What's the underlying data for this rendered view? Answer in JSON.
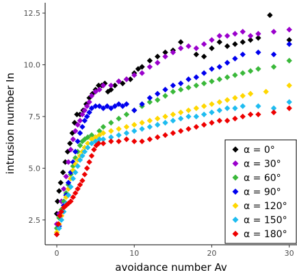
{
  "chart_data": {
    "type": "scatter",
    "title": "",
    "xlabel": "avoidance number Av",
    "ylabel": "intrusion number In",
    "xlim": [
      -1.5,
      31
    ],
    "ylim": [
      1.3,
      13.0
    ],
    "xticks": [
      0,
      10,
      20,
      30
    ],
    "yticks": [
      2.5,
      5.0,
      7.5,
      10.0,
      12.5
    ],
    "xtick_labels": [
      "0",
      "10",
      "20",
      "30"
    ],
    "ytick_labels": [
      "2.5",
      "5.0",
      "7.5",
      "10.0",
      "12.5"
    ],
    "grid": false,
    "legend_position": "bottom-right",
    "marker": "diamond",
    "series": [
      {
        "name": "α = 0°",
        "color": "#000000",
        "points": [
          [
            0.0,
            2.8
          ],
          [
            0.1,
            3.4
          ],
          [
            0.3,
            3.9
          ],
          [
            0.5,
            4.3
          ],
          [
            0.8,
            4.8
          ],
          [
            1.1,
            5.3
          ],
          [
            1.4,
            5.8
          ],
          [
            1.7,
            6.2
          ],
          [
            2.0,
            6.7
          ],
          [
            2.3,
            7.2
          ],
          [
            2.6,
            7.6
          ],
          [
            3.0,
            7.6
          ],
          [
            3.4,
            7.8
          ],
          [
            3.8,
            8.1
          ],
          [
            4.2,
            8.4
          ],
          [
            4.6,
            8.6
          ],
          [
            5.0,
            8.8
          ],
          [
            5.4,
            9.0
          ],
          [
            5.8,
            9.0
          ],
          [
            6.2,
            9.1
          ],
          [
            6.6,
            8.7
          ],
          [
            7.0,
            8.8
          ],
          [
            7.5,
            9.0
          ],
          [
            8.0,
            9.2
          ],
          [
            8.5,
            9.1
          ],
          [
            9.0,
            9.3
          ],
          [
            9.5,
            9.3
          ],
          [
            10.0,
            9.6
          ],
          [
            10.5,
            9.8
          ],
          [
            11.0,
            9.9
          ],
          [
            12.0,
            10.2
          ],
          [
            13.0,
            10.4
          ],
          [
            14.0,
            10.6
          ],
          [
            15.0,
            10.7
          ],
          [
            16.0,
            11.1
          ],
          [
            18.0,
            10.5
          ],
          [
            19.0,
            10.4
          ],
          [
            20.0,
            10.8
          ],
          [
            21.0,
            11.1
          ],
          [
            22.0,
            10.9
          ],
          [
            23.0,
            11.0
          ],
          [
            24.0,
            11.1
          ],
          [
            25.0,
            11.2
          ],
          [
            26.0,
            11.3
          ],
          [
            27.5,
            12.4
          ],
          [
            30.0,
            11.2
          ]
        ]
      },
      {
        "name": "α = 30°",
        "color": "#9a00cc",
        "points": [
          [
            0.0,
            2.3
          ],
          [
            0.3,
            2.8
          ],
          [
            0.6,
            3.4
          ],
          [
            0.9,
            4.0
          ],
          [
            1.2,
            4.6
          ],
          [
            1.5,
            5.3
          ],
          [
            1.8,
            5.9
          ],
          [
            2.1,
            6.4
          ],
          [
            2.4,
            6.8
          ],
          [
            2.7,
            7.1
          ],
          [
            3.0,
            7.3
          ],
          [
            3.3,
            7.6
          ],
          [
            3.6,
            7.8
          ],
          [
            3.9,
            8.0
          ],
          [
            4.2,
            8.2
          ],
          [
            4.5,
            8.5
          ],
          [
            5.0,
            8.7
          ],
          [
            5.5,
            8.8
          ],
          [
            6.0,
            9.0
          ],
          [
            7.0,
            9.0
          ],
          [
            8.0,
            9.2
          ],
          [
            9.0,
            9.3
          ],
          [
            10.0,
            9.5
          ],
          [
            11.0,
            9.6
          ],
          [
            12.0,
            9.9
          ],
          [
            13.0,
            10.1
          ],
          [
            14.0,
            10.4
          ],
          [
            15.0,
            10.6
          ],
          [
            16.0,
            10.8
          ],
          [
            17.0,
            10.9
          ],
          [
            18.0,
            10.8
          ],
          [
            19.0,
            11.0
          ],
          [
            20.0,
            11.2
          ],
          [
            21.0,
            11.4
          ],
          [
            22.0,
            11.4
          ],
          [
            23.0,
            11.5
          ],
          [
            24.0,
            11.6
          ],
          [
            25.0,
            11.4
          ],
          [
            26.0,
            11.5
          ],
          [
            28.0,
            11.6
          ],
          [
            30.0,
            11.7
          ]
        ]
      },
      {
        "name": "α = 60°",
        "color": "#3ab83a",
        "points": [
          [
            0.0,
            2.1
          ],
          [
            0.3,
            2.6
          ],
          [
            0.6,
            3.0
          ],
          [
            0.9,
            3.4
          ],
          [
            1.2,
            3.8
          ],
          [
            1.5,
            4.2
          ],
          [
            1.8,
            4.7
          ],
          [
            2.1,
            5.1
          ],
          [
            2.4,
            5.5
          ],
          [
            2.7,
            5.8
          ],
          [
            3.0,
            6.1
          ],
          [
            3.3,
            6.3
          ],
          [
            3.6,
            6.4
          ],
          [
            4.0,
            6.5
          ],
          [
            4.5,
            6.6
          ],
          [
            5.0,
            6.5
          ],
          [
            5.5,
            6.8
          ],
          [
            6.0,
            7.0
          ],
          [
            7.0,
            7.2
          ],
          [
            8.0,
            7.4
          ],
          [
            9.0,
            7.6
          ],
          [
            10.0,
            7.8
          ],
          [
            11.0,
            8.0
          ],
          [
            12.0,
            8.2
          ],
          [
            13.0,
            8.3
          ],
          [
            14.0,
            8.5
          ],
          [
            15.0,
            8.7
          ],
          [
            16.0,
            8.8
          ],
          [
            17.0,
            8.9
          ],
          [
            18.0,
            9.0
          ],
          [
            19.0,
            9.1
          ],
          [
            20.0,
            9.2
          ],
          [
            21.0,
            9.3
          ],
          [
            22.0,
            9.4
          ],
          [
            23.0,
            9.5
          ],
          [
            24.0,
            9.6
          ],
          [
            25.0,
            9.7
          ],
          [
            26.0,
            9.8
          ],
          [
            28.0,
            9.9
          ],
          [
            30.0,
            10.2
          ]
        ]
      },
      {
        "name": "α = 90°",
        "color": "#0000ee",
        "points": [
          [
            0.0,
            1.8
          ],
          [
            0.3,
            2.2
          ],
          [
            0.6,
            2.7
          ],
          [
            0.9,
            3.2
          ],
          [
            1.2,
            3.7
          ],
          [
            1.5,
            4.3
          ],
          [
            1.8,
            4.8
          ],
          [
            2.1,
            5.3
          ],
          [
            2.4,
            5.8
          ],
          [
            2.7,
            6.3
          ],
          [
            3.0,
            6.7
          ],
          [
            3.3,
            7.0
          ],
          [
            3.6,
            7.3
          ],
          [
            3.9,
            7.5
          ],
          [
            4.2,
            7.7
          ],
          [
            4.5,
            7.9
          ],
          [
            5.0,
            8.0
          ],
          [
            5.5,
            8.0
          ],
          [
            6.0,
            7.9
          ],
          [
            6.5,
            8.0
          ],
          [
            7.0,
            7.9
          ],
          [
            7.5,
            8.0
          ],
          [
            8.0,
            8.1
          ],
          [
            8.5,
            8.0
          ],
          [
            9.0,
            8.1
          ],
          [
            10.0,
            7.8
          ],
          [
            11.0,
            8.1
          ],
          [
            12.0,
            8.4
          ],
          [
            13.0,
            8.6
          ],
          [
            14.0,
            8.8
          ],
          [
            15.0,
            9.0
          ],
          [
            16.0,
            9.1
          ],
          [
            17.0,
            9.3
          ],
          [
            18.0,
            9.4
          ],
          [
            19.0,
            9.6
          ],
          [
            20.0,
            9.8
          ],
          [
            21.0,
            9.9
          ],
          [
            22.0,
            10.1
          ],
          [
            23.0,
            10.3
          ],
          [
            24.0,
            10.5
          ],
          [
            26.0,
            10.6
          ],
          [
            28.0,
            10.5
          ],
          [
            30.0,
            11.0
          ]
        ]
      },
      {
        "name": "α = 120°",
        "color": "#ffd700",
        "points": [
          [
            0.0,
            1.9
          ],
          [
            0.3,
            2.3
          ],
          [
            0.6,
            2.7
          ],
          [
            0.9,
            3.1
          ],
          [
            1.2,
            3.6
          ],
          [
            1.5,
            4.0
          ],
          [
            1.8,
            4.5
          ],
          [
            2.1,
            4.9
          ],
          [
            2.4,
            5.2
          ],
          [
            2.7,
            5.4
          ],
          [
            3.0,
            5.6
          ],
          [
            3.3,
            5.8
          ],
          [
            3.6,
            6.0
          ],
          [
            4.0,
            6.2
          ],
          [
            4.5,
            6.4
          ],
          [
            5.0,
            6.5
          ],
          [
            5.5,
            6.6
          ],
          [
            6.0,
            6.7
          ],
          [
            7.0,
            6.8
          ],
          [
            8.0,
            6.9
          ],
          [
            9.0,
            7.0
          ],
          [
            10.0,
            7.1
          ],
          [
            11.0,
            7.2
          ],
          [
            12.0,
            7.3
          ],
          [
            13.0,
            7.4
          ],
          [
            14.0,
            7.5
          ],
          [
            15.0,
            7.6
          ],
          [
            16.0,
            7.7
          ],
          [
            17.0,
            7.8
          ],
          [
            18.0,
            7.9
          ],
          [
            19.0,
            8.0
          ],
          [
            20.0,
            8.1
          ],
          [
            21.0,
            8.2
          ],
          [
            22.0,
            8.3
          ],
          [
            23.0,
            8.4
          ],
          [
            24.0,
            8.5
          ],
          [
            25.0,
            8.6
          ],
          [
            27.0,
            8.7
          ],
          [
            30.0,
            9.0
          ]
        ]
      },
      {
        "name": "α = 150°",
        "color": "#1ebcf0",
        "points": [
          [
            0.0,
            1.8
          ],
          [
            0.3,
            2.1
          ],
          [
            0.6,
            2.5
          ],
          [
            0.9,
            2.9
          ],
          [
            1.2,
            3.3
          ],
          [
            1.5,
            3.7
          ],
          [
            1.8,
            4.1
          ],
          [
            2.1,
            4.5
          ],
          [
            2.4,
            4.8
          ],
          [
            2.7,
            5.1
          ],
          [
            3.0,
            5.4
          ],
          [
            3.3,
            5.6
          ],
          [
            3.6,
            5.8
          ],
          [
            4.0,
            6.0
          ],
          [
            4.5,
            6.2
          ],
          [
            5.0,
            6.3
          ],
          [
            5.5,
            6.4
          ],
          [
            6.0,
            6.4
          ],
          [
            7.0,
            6.5
          ],
          [
            8.0,
            6.6
          ],
          [
            9.0,
            6.7
          ],
          [
            10.0,
            6.8
          ],
          [
            11.0,
            6.9
          ],
          [
            12.0,
            7.0
          ],
          [
            13.0,
            7.1
          ],
          [
            14.0,
            7.2
          ],
          [
            15.0,
            7.3
          ],
          [
            16.0,
            7.4
          ],
          [
            17.0,
            7.5
          ],
          [
            18.0,
            7.5
          ],
          [
            19.0,
            7.6
          ],
          [
            20.0,
            7.7
          ],
          [
            21.0,
            7.8
          ],
          [
            22.0,
            7.9
          ],
          [
            23.0,
            7.9
          ],
          [
            24.0,
            8.0
          ],
          [
            26.0,
            8.0
          ],
          [
            28.0,
            7.9
          ],
          [
            30.0,
            8.2
          ]
        ]
      },
      {
        "name": "α = 180°",
        "color": "#ee0000",
        "points": [
          [
            0.0,
            1.8
          ],
          [
            0.2,
            2.3
          ],
          [
            0.4,
            2.7
          ],
          [
            0.6,
            2.9
          ],
          [
            0.9,
            3.1
          ],
          [
            1.2,
            3.2
          ],
          [
            1.5,
            3.3
          ],
          [
            1.8,
            3.4
          ],
          [
            2.1,
            3.6
          ],
          [
            2.4,
            3.8
          ],
          [
            2.7,
            4.0
          ],
          [
            3.0,
            4.2
          ],
          [
            3.3,
            4.4
          ],
          [
            3.6,
            4.7
          ],
          [
            3.9,
            5.0
          ],
          [
            4.2,
            5.3
          ],
          [
            4.5,
            5.6
          ],
          [
            4.8,
            5.9
          ],
          [
            5.1,
            6.1
          ],
          [
            5.4,
            6.2
          ],
          [
            6.0,
            6.2
          ],
          [
            7.0,
            6.3
          ],
          [
            8.0,
            6.3
          ],
          [
            9.0,
            6.4
          ],
          [
            10.0,
            6.3
          ],
          [
            11.0,
            6.3
          ],
          [
            12.0,
            6.4
          ],
          [
            13.0,
            6.5
          ],
          [
            14.0,
            6.6
          ],
          [
            15.0,
            6.7
          ],
          [
            16.0,
            6.8
          ],
          [
            17.0,
            6.9
          ],
          [
            18.0,
            7.0
          ],
          [
            19.0,
            7.1
          ],
          [
            20.0,
            7.2
          ],
          [
            21.0,
            7.3
          ],
          [
            22.0,
            7.3
          ],
          [
            23.0,
            7.4
          ],
          [
            24.0,
            7.5
          ],
          [
            25.0,
            7.6
          ],
          [
            26.0,
            7.6
          ],
          [
            28.0,
            7.7
          ],
          [
            30.0,
            7.9
          ]
        ]
      }
    ]
  }
}
